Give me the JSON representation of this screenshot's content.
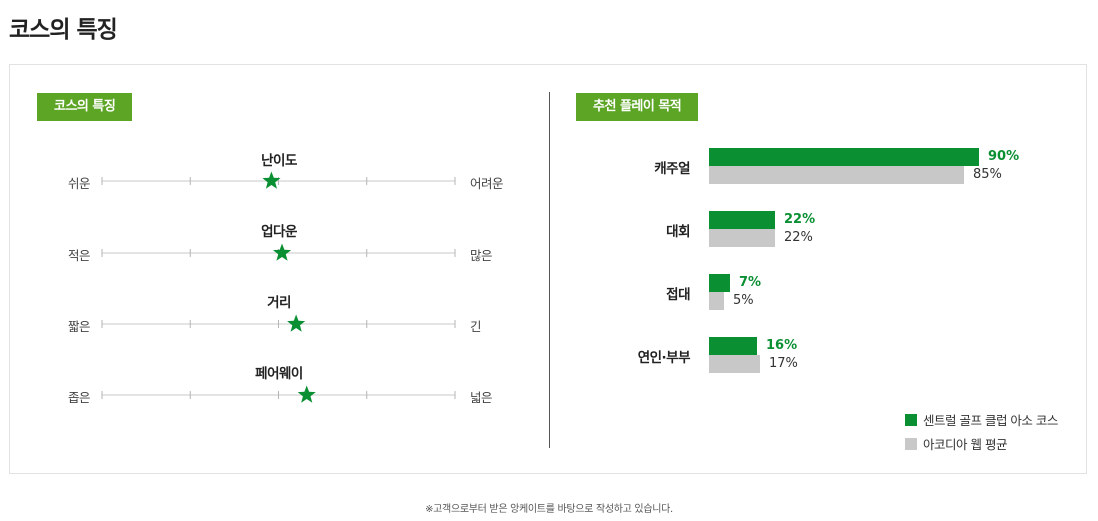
{
  "page_title": "코스의 특징",
  "footnote": "※고객으로부터 받은 앙케이트를 바탕으로 작성하고 있습니다.",
  "colors": {
    "accent": "#5ca525",
    "primary_bar": "#0a8f33",
    "secondary_bar": "#c8c8c8",
    "star": "#0a8f33"
  },
  "left_panel": {
    "badge": "코스의 특징",
    "scales": [
      {
        "title": "난이도",
        "low_label": "쉬운",
        "high_label": "어려운",
        "value": 0.48
      },
      {
        "title": "업다운",
        "low_label": "적은",
        "high_label": "많은",
        "value": 0.51
      },
      {
        "title": "거리",
        "low_label": "짧은",
        "high_label": "긴",
        "value": 0.55
      },
      {
        "title": "페어웨이",
        "low_label": "좁은",
        "high_label": "넓은",
        "value": 0.58
      }
    ]
  },
  "chart_data": {
    "type": "bar",
    "title": "추천 플레이 목적",
    "categories": [
      "캐주얼",
      "대회",
      "접대",
      "연인·부부"
    ],
    "series": [
      {
        "name": "센트럴 골프 클럽 아소 코스",
        "values": [
          90,
          22,
          7,
          16
        ],
        "labels": [
          "90%",
          "22%",
          "7%",
          "16%"
        ]
      },
      {
        "name": "아코디아 웹 평균",
        "values": [
          85,
          22,
          5,
          17
        ],
        "labels": [
          "85%",
          "22%",
          "5%",
          "17%"
        ]
      }
    ],
    "xlim": [
      0,
      100
    ],
    "legend": "bottom-right"
  }
}
